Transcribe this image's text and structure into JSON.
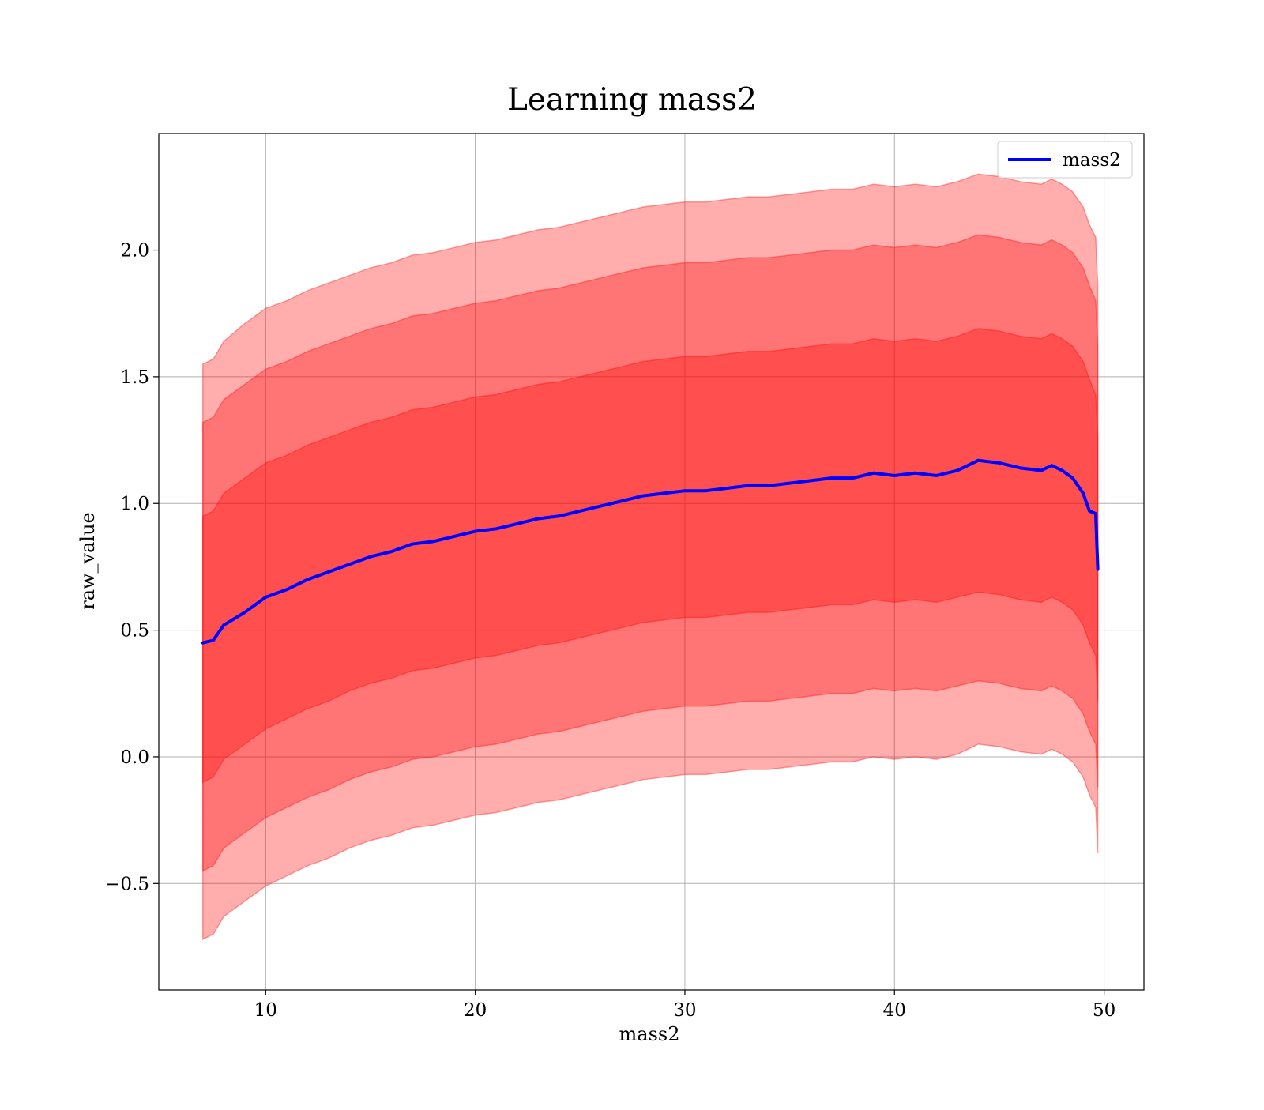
{
  "chart_data": {
    "type": "line",
    "title": "Learning mass2",
    "xlabel": "mass2",
    "ylabel": "raw_value",
    "xlim": [
      4.9,
      51.9
    ],
    "ylim": [
      -0.92,
      2.46
    ],
    "grid": true,
    "legend_position": "top-right",
    "xticks": [
      10,
      20,
      30,
      40,
      50
    ],
    "xtick_labels": [
      "10",
      "20",
      "30",
      "40",
      "50"
    ],
    "yticks": [
      -0.5,
      0.0,
      0.5,
      1.0,
      1.5,
      2.0
    ],
    "ytick_labels": [
      "−0.5",
      "0.0",
      "0.5",
      "1.0",
      "1.5",
      "2.0"
    ],
    "colors": {
      "line": "#0000ff",
      "band_fill": "#ff0000",
      "band_fill_opacity": 0.32,
      "band_edge_opacity": 0.35,
      "grid": "#b0b0b0"
    },
    "series": [
      {
        "name": "mass2",
        "x": [
          7.0,
          7.5,
          8,
          9,
          10,
          11,
          12,
          13,
          14,
          15,
          16,
          17,
          18,
          19,
          20,
          21,
          22,
          23,
          24,
          25,
          26,
          27,
          28,
          29,
          30,
          31,
          32,
          33,
          34,
          35,
          36,
          37,
          38,
          39,
          40,
          41,
          42,
          43,
          44,
          45,
          46,
          47,
          47.5,
          48,
          48.5,
          49,
          49.3,
          49.6,
          49.7
        ],
        "y": [
          0.45,
          0.46,
          0.52,
          0.57,
          0.63,
          0.66,
          0.7,
          0.73,
          0.76,
          0.79,
          0.81,
          0.84,
          0.85,
          0.87,
          0.89,
          0.9,
          0.92,
          0.94,
          0.95,
          0.97,
          0.99,
          1.01,
          1.03,
          1.04,
          1.05,
          1.05,
          1.06,
          1.07,
          1.07,
          1.08,
          1.09,
          1.1,
          1.1,
          1.12,
          1.11,
          1.12,
          1.11,
          1.13,
          1.17,
          1.16,
          1.14,
          1.13,
          1.15,
          1.13,
          1.1,
          1.04,
          0.97,
          0.96,
          0.74
        ]
      }
    ],
    "bands": [
      {
        "level": 3,
        "lower": [
          -0.72,
          -0.7,
          -0.63,
          -0.57,
          -0.51,
          -0.47,
          -0.43,
          -0.4,
          -0.36,
          -0.33,
          -0.31,
          -0.28,
          -0.27,
          -0.25,
          -0.23,
          -0.22,
          -0.2,
          -0.18,
          -0.17,
          -0.15,
          -0.13,
          -0.11,
          -0.09,
          -0.08,
          -0.07,
          -0.07,
          -0.06,
          -0.05,
          -0.05,
          -0.04,
          -0.03,
          -0.02,
          -0.02,
          0.0,
          -0.01,
          0.0,
          -0.01,
          0.01,
          0.05,
          0.04,
          0.02,
          0.01,
          0.03,
          0.01,
          -0.02,
          -0.08,
          -0.15,
          -0.2,
          -0.38
        ],
        "upper": [
          1.55,
          1.57,
          1.64,
          1.71,
          1.77,
          1.8,
          1.84,
          1.87,
          1.9,
          1.93,
          1.95,
          1.98,
          1.99,
          2.01,
          2.03,
          2.04,
          2.06,
          2.08,
          2.09,
          2.11,
          2.13,
          2.15,
          2.17,
          2.18,
          2.19,
          2.19,
          2.2,
          2.21,
          2.21,
          2.22,
          2.23,
          2.24,
          2.24,
          2.26,
          2.25,
          2.26,
          2.25,
          2.27,
          2.3,
          2.29,
          2.27,
          2.26,
          2.28,
          2.26,
          2.23,
          2.17,
          2.1,
          2.05,
          1.86
        ]
      },
      {
        "level": 2,
        "lower": [
          -0.45,
          -0.43,
          -0.36,
          -0.3,
          -0.24,
          -0.2,
          -0.16,
          -0.13,
          -0.09,
          -0.06,
          -0.04,
          -0.01,
          0.0,
          0.02,
          0.04,
          0.05,
          0.07,
          0.09,
          0.1,
          0.12,
          0.14,
          0.16,
          0.18,
          0.19,
          0.2,
          0.2,
          0.21,
          0.22,
          0.22,
          0.23,
          0.24,
          0.25,
          0.25,
          0.27,
          0.26,
          0.27,
          0.26,
          0.28,
          0.3,
          0.29,
          0.27,
          0.26,
          0.28,
          0.26,
          0.23,
          0.17,
          0.1,
          0.05,
          -0.12
        ],
        "upper": [
          1.32,
          1.34,
          1.41,
          1.47,
          1.53,
          1.56,
          1.6,
          1.63,
          1.66,
          1.69,
          1.71,
          1.74,
          1.75,
          1.77,
          1.79,
          1.8,
          1.82,
          1.84,
          1.85,
          1.87,
          1.89,
          1.91,
          1.93,
          1.94,
          1.95,
          1.95,
          1.96,
          1.97,
          1.97,
          1.98,
          1.99,
          2.0,
          2.0,
          2.02,
          2.01,
          2.02,
          2.01,
          2.03,
          2.06,
          2.05,
          2.03,
          2.02,
          2.04,
          2.02,
          1.99,
          1.93,
          1.86,
          1.8,
          1.62
        ]
      },
      {
        "level": 1,
        "lower": [
          -0.1,
          -0.08,
          -0.01,
          0.05,
          0.11,
          0.15,
          0.19,
          0.22,
          0.26,
          0.29,
          0.31,
          0.34,
          0.35,
          0.37,
          0.39,
          0.4,
          0.42,
          0.44,
          0.45,
          0.47,
          0.49,
          0.51,
          0.53,
          0.54,
          0.55,
          0.55,
          0.56,
          0.57,
          0.57,
          0.58,
          0.59,
          0.6,
          0.6,
          0.62,
          0.61,
          0.62,
          0.61,
          0.63,
          0.65,
          0.64,
          0.62,
          0.61,
          0.63,
          0.61,
          0.58,
          0.52,
          0.45,
          0.4,
          0.22
        ],
        "upper": [
          0.95,
          0.97,
          1.04,
          1.1,
          1.16,
          1.19,
          1.23,
          1.26,
          1.29,
          1.32,
          1.34,
          1.37,
          1.38,
          1.4,
          1.42,
          1.43,
          1.45,
          1.47,
          1.48,
          1.5,
          1.52,
          1.54,
          1.56,
          1.57,
          1.58,
          1.58,
          1.59,
          1.6,
          1.6,
          1.61,
          1.62,
          1.63,
          1.63,
          1.65,
          1.64,
          1.65,
          1.64,
          1.66,
          1.69,
          1.68,
          1.66,
          1.65,
          1.67,
          1.65,
          1.62,
          1.56,
          1.49,
          1.43,
          1.26
        ]
      }
    ]
  }
}
